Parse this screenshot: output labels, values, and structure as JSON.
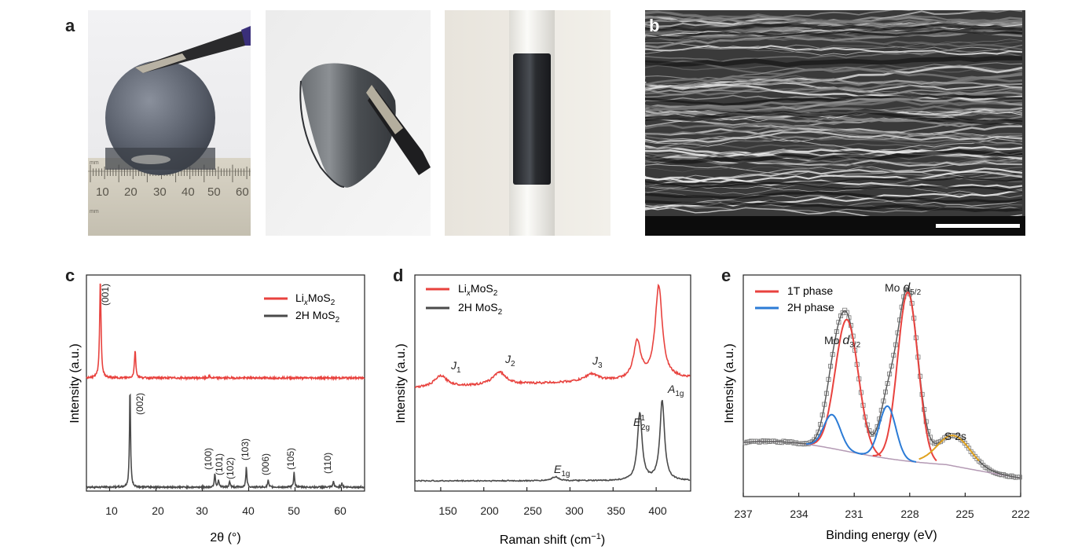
{
  "figure": {
    "panels": {
      "a": "a",
      "b": "b",
      "c": "c",
      "d": "d",
      "e": "e"
    },
    "ruler": {
      "unit": "mm",
      "labels": [
        "10",
        "20",
        "30",
        "40",
        "50",
        "60"
      ]
    }
  },
  "colors": {
    "red": "#e8423e",
    "dark": "#4a4a4a",
    "blue": "#2b7bd6",
    "orange": "#e0a21e",
    "envelope": "#9a8fb0"
  },
  "chart_data": [
    {
      "id": "c",
      "type": "line",
      "xlabel": "2θ (°)",
      "ylabel": "Intensity (a.u.)",
      "xlim": [
        5,
        65
      ],
      "xticks": [
        "10",
        "20",
        "30",
        "40",
        "50",
        "60"
      ],
      "legend": {
        "placement": "top-right",
        "items": [
          "LixMoS2",
          "2H MoS2"
        ]
      },
      "series": [
        {
          "name": "LixMoS2",
          "peaks": [
            [
              8.0,
              100
            ],
            [
              15.5,
              28
            ],
            [
              31.5,
              2
            ]
          ]
        },
        {
          "name": "2H MoS2",
          "peaks": [
            [
              14.4,
              100
            ],
            [
              32.7,
              14
            ],
            [
              33.5,
              7
            ],
            [
              35.9,
              6
            ],
            [
              39.5,
              20
            ],
            [
              44.2,
              7
            ],
            [
              49.8,
              15
            ],
            [
              58.3,
              6
            ],
            [
              60.1,
              4
            ]
          ]
        }
      ],
      "annotations": [
        "(001)",
        "(002)",
        "(100)",
        "(101)",
        "(102)",
        "(103)",
        "(006)",
        "(105)",
        "(110)"
      ]
    },
    {
      "id": "d",
      "type": "line",
      "xlabel": "Raman shift (cm−1)",
      "ylabel": "Intensity (a.u.)",
      "xlim": [
        120,
        440
      ],
      "xticks": [
        "150",
        "200",
        "250",
        "300",
        "350",
        "400"
      ],
      "legend": {
        "placement": "top-left",
        "items": [
          "LixMoS2",
          "2H MoS2"
        ]
      },
      "series": [
        {
          "name": "LixMoS2",
          "peaks": [
            [
              150,
              12
            ],
            [
              218,
              14
            ],
            [
              325,
              8
            ],
            [
              378,
              40
            ],
            [
              403,
              100
            ]
          ]
        },
        {
          "name": "2H MoS2",
          "peaks": [
            [
              283,
              5
            ],
            [
              381,
              85
            ],
            [
              407,
              100
            ]
          ]
        }
      ],
      "annotations": [
        "J1",
        "J2",
        "J3",
        "E1g",
        "E12g",
        "A1g"
      ]
    },
    {
      "id": "e",
      "type": "line",
      "xlabel": "Binding energy (eV)",
      "ylabel": "Intensity (a.u.)",
      "xlim": [
        237,
        222
      ],
      "xticks": [
        "237",
        "234",
        "231",
        "228",
        "225",
        "222"
      ],
      "legend": {
        "placement": "top-left",
        "items": [
          "1T phase",
          "2H phase"
        ]
      },
      "series": [
        {
          "name": "1T phase",
          "peaks": [
            [
              231.4,
              0.78
            ],
            [
              228.1,
              1.0
            ]
          ]
        },
        {
          "name": "2H phase",
          "peaks": [
            [
              232.2,
              0.2
            ],
            [
              229.2,
              0.31
            ]
          ]
        }
      ],
      "annotations": [
        "Mo d3/2",
        "Mo d5/2",
        "S 2s"
      ]
    }
  ]
}
